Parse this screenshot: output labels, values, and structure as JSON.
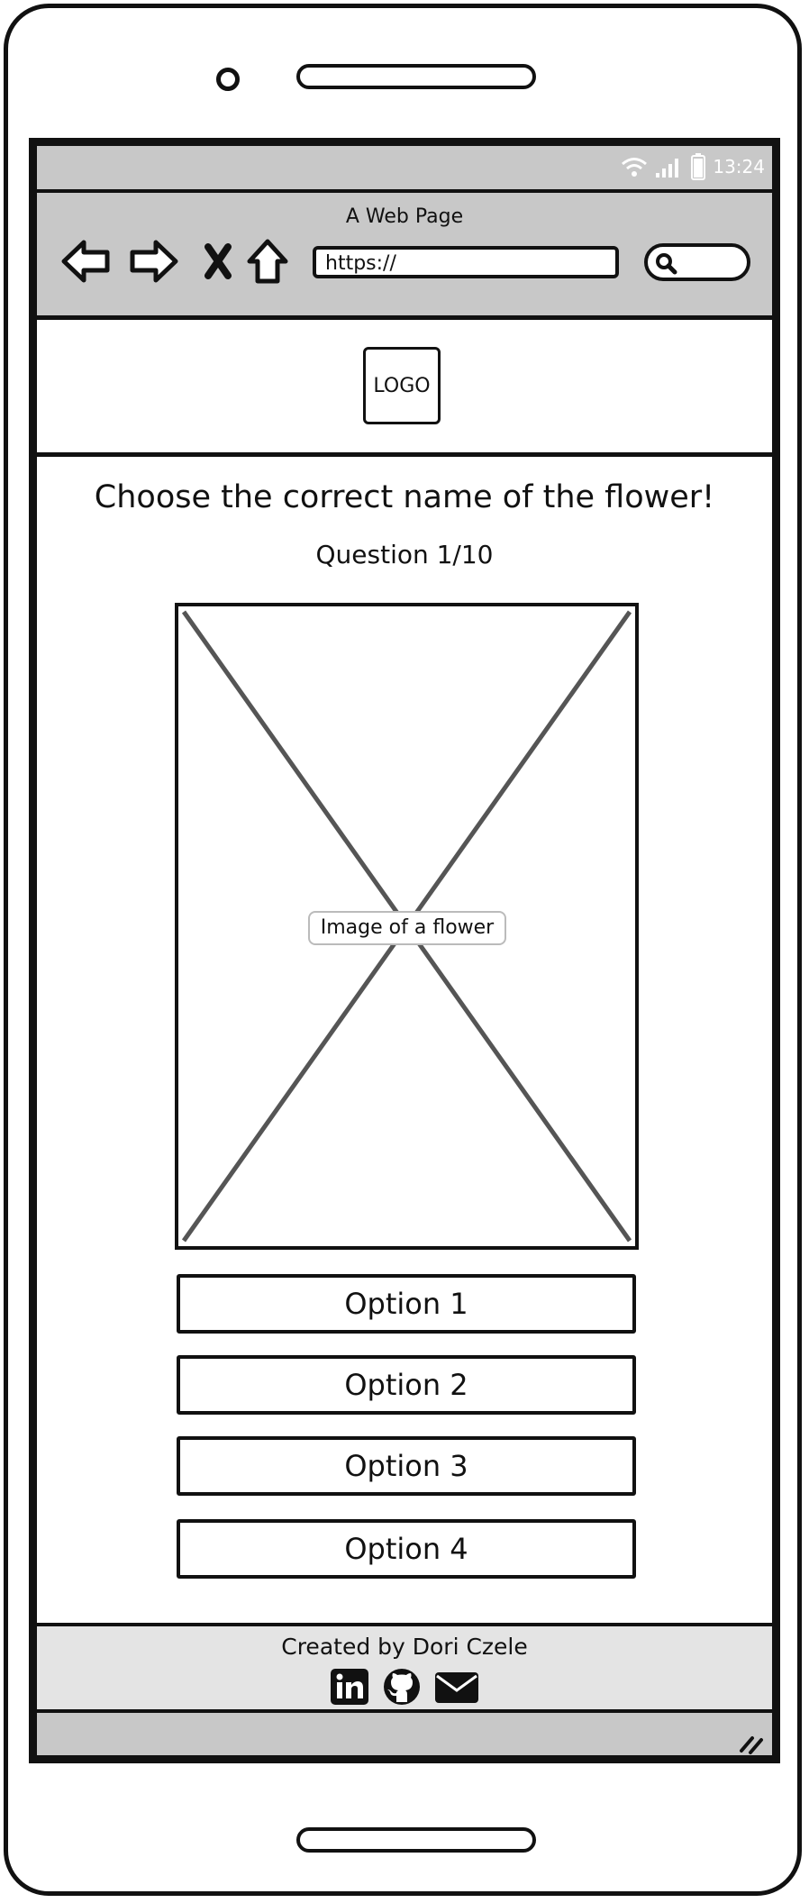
{
  "status_bar": {
    "time": "13:24"
  },
  "browser": {
    "page_title": "A Web Page",
    "url": "https://"
  },
  "header": {
    "logo_text": "LOGO"
  },
  "quiz": {
    "title": "Choose the correct name of the flower!",
    "question_counter": "Question 1/10",
    "image_label": "Image of a flower",
    "options": [
      "Option 1",
      "Option 2",
      "Option 3",
      "Option 4"
    ]
  },
  "footer": {
    "credit": "Created by Dori Czele",
    "icons": [
      "linkedin-icon",
      "github-icon",
      "email-icon"
    ]
  }
}
